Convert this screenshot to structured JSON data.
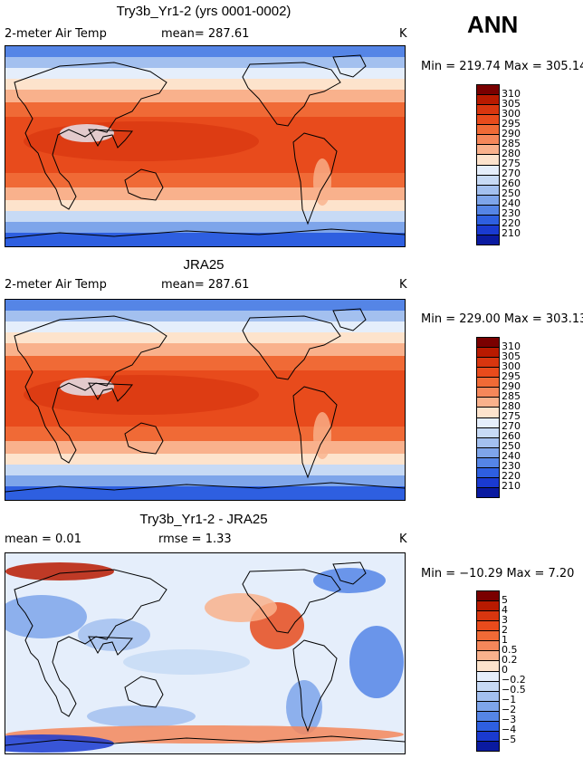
{
  "season": "ANN",
  "panels": [
    {
      "title": "Try3b_Yr1-2 (yrs 0001-0002)",
      "left_label": "2-meter Air Temp",
      "mid_label": "mean=  287.61",
      "units": "K",
      "minmax": "Min = 219.74  Max = 305.14",
      "kind": "temp",
      "colorbar": {
        "labels": [
          "310",
          "305",
          "300",
          "295",
          "290",
          "285",
          "280",
          "275",
          "270",
          "260",
          "250",
          "240",
          "230",
          "220",
          "210"
        ],
        "colors": [
          "#7a0000",
          "#b81a00",
          "#d8360f",
          "#e84b1c",
          "#f06a36",
          "#f5875a",
          "#f9b18c",
          "#fde3cc",
          "#e5eefb",
          "#c7daf5",
          "#a3c0ef",
          "#7ea5ea",
          "#5585e6",
          "#2e5fe0",
          "#1a3ad0",
          "#0a1aa0"
        ]
      }
    },
    {
      "title": "JRA25",
      "left_label": "2-meter Air Temp",
      "mid_label": "mean=  287.61",
      "units": "K",
      "minmax": "Min = 229.00  Max = 303.13",
      "kind": "temp",
      "colorbar": {
        "labels": [
          "310",
          "305",
          "300",
          "295",
          "290",
          "285",
          "280",
          "275",
          "270",
          "260",
          "250",
          "240",
          "230",
          "220",
          "210"
        ],
        "colors": [
          "#7a0000",
          "#b81a00",
          "#d8360f",
          "#e84b1c",
          "#f06a36",
          "#f5875a",
          "#f9b18c",
          "#fde3cc",
          "#e5eefb",
          "#c7daf5",
          "#a3c0ef",
          "#7ea5ea",
          "#5585e6",
          "#2e5fe0",
          "#1a3ad0",
          "#0a1aa0"
        ]
      }
    },
    {
      "title": "Try3b_Yr1-2 - JRA25",
      "left_label": "mean =    0.01",
      "mid_label": "rmse =    1.33",
      "units": "K",
      "minmax": "Min = −10.29  Max =   7.20",
      "kind": "diff",
      "colorbar": {
        "labels": [
          "5",
          "4",
          "3",
          "2",
          "1",
          "0.5",
          "0.2",
          "0",
          "−0.2",
          "−0.5",
          "−1",
          "−2",
          "−3",
          "−4",
          "−5"
        ],
        "colors": [
          "#7a0000",
          "#b81a00",
          "#d8360f",
          "#e84b1c",
          "#f06a36",
          "#f5875a",
          "#f9b18c",
          "#fde3cc",
          "#e5eefb",
          "#c7daf5",
          "#a3c0ef",
          "#7ea5ea",
          "#5585e6",
          "#2e5fe0",
          "#1a3ad0",
          "#0a1aa0"
        ]
      }
    }
  ]
}
